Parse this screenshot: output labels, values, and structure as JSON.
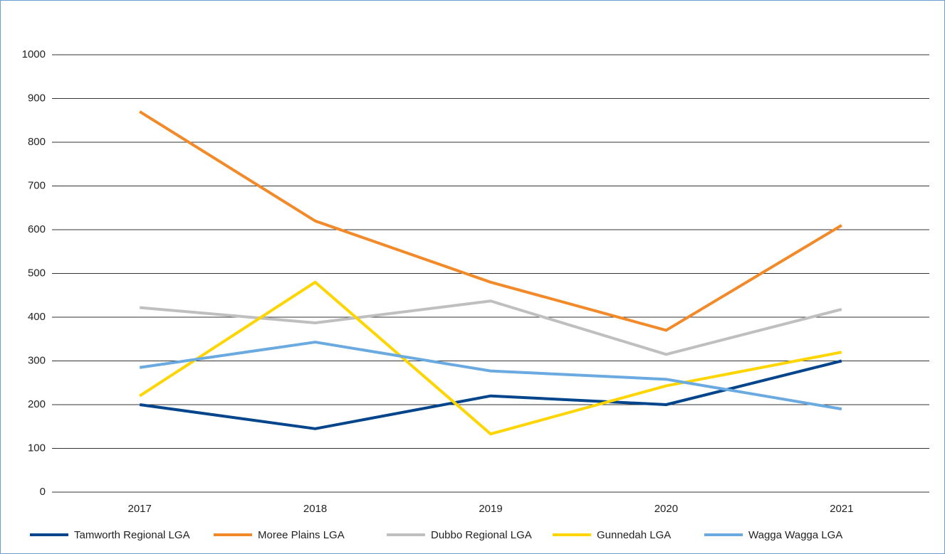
{
  "chart_data": {
    "type": "line",
    "categories": [
      "2017",
      "2018",
      "2019",
      "2020",
      "2021"
    ],
    "series": [
      {
        "name": "Tamworth Regional LGA",
        "color": "#00458c",
        "values": [
          200,
          145,
          220,
          200,
          300
        ]
      },
      {
        "name": "Moree Plains LGA",
        "color": "#f28a2a",
        "values": [
          870,
          620,
          480,
          370,
          610
        ]
      },
      {
        "name": "Dubbo Regional LGA",
        "color": "#bfbfbf",
        "values": [
          422,
          387,
          437,
          315,
          418
        ]
      },
      {
        "name": "Gunnedah LGA",
        "color": "#ffd500",
        "values": [
          220,
          480,
          133,
          243,
          320
        ]
      },
      {
        "name": "Wagga Wagga LGA",
        "color": "#6aaae0",
        "values": [
          285,
          343,
          277,
          258,
          190
        ]
      }
    ],
    "ylim": [
      0,
      1000
    ],
    "yticks": [
      0,
      100,
      200,
      300,
      400,
      500,
      600,
      700,
      800,
      900,
      1000
    ],
    "grid": true,
    "legend": "bottom"
  }
}
